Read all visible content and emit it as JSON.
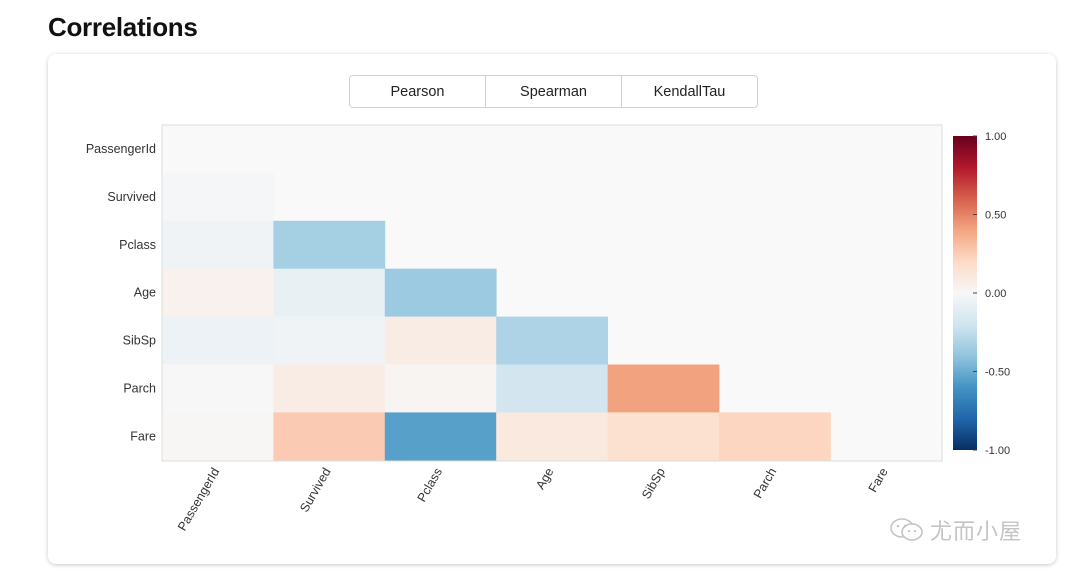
{
  "page": {
    "title": "Correlations"
  },
  "tabs": [
    {
      "label": "Pearson"
    },
    {
      "label": "Spearman"
    },
    {
      "label": "KendallTau"
    }
  ],
  "watermark": {
    "text": "尤而小屋",
    "icon": "wechat-icon"
  },
  "chart_data": {
    "type": "heatmap",
    "variables": [
      "PassengerId",
      "Survived",
      "Pclass",
      "Age",
      "SibSp",
      "Parch",
      "Fare"
    ],
    "values": [
      [
        null,
        null,
        null,
        null,
        null,
        null,
        null
      ],
      [
        -0.01,
        null,
        null,
        null,
        null,
        null,
        null
      ],
      [
        -0.04,
        -0.34,
        null,
        null,
        null,
        null,
        null
      ],
      [
        0.04,
        -0.08,
        -0.37,
        null,
        null,
        null,
        null
      ],
      [
        -0.06,
        -0.04,
        0.08,
        -0.31,
        null,
        null,
        null
      ],
      [
        -0.0,
        0.08,
        0.02,
        -0.19,
        0.41,
        null,
        null
      ],
      [
        0.01,
        0.26,
        -0.55,
        0.1,
        0.16,
        0.22,
        null
      ]
    ],
    "colorbar": {
      "min": -1.0,
      "max": 1.0,
      "ticks": [
        "1.00",
        "0.50",
        "0.00",
        "-0.50",
        "-1.00"
      ],
      "tick_values": [
        1.0,
        0.5,
        0.0,
        -0.5,
        -1.0
      ],
      "colormap": "RdBu_r"
    },
    "colors": {
      "empty_cell": "#f9f9f9",
      "grid_border": "#dddddd"
    }
  }
}
